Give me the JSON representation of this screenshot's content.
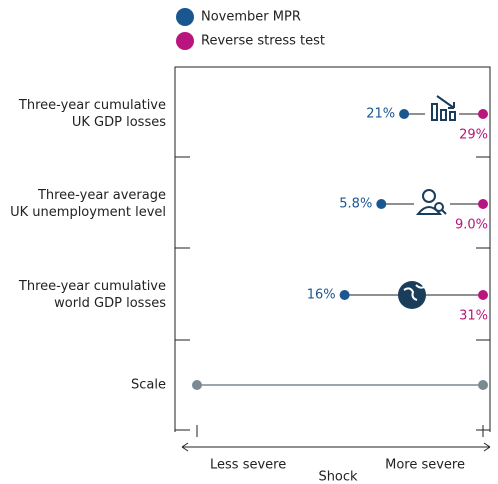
{
  "chart_data": {
    "type": "dumbbell",
    "categories": [
      "Three-year cumulative\nUK GDP losses",
      "Three-year average\nUK unemployment level",
      "Three-year cumulative\nworld GDP losses"
    ],
    "series": [
      {
        "name": "November MPR",
        "color": "#1a5791",
        "values": [
          21,
          5.8,
          16
        ],
        "value_labels": [
          "21%",
          "5.8%",
          "16%"
        ]
      },
      {
        "name": "Reverse stress test",
        "color": "#b8157e",
        "values": [
          29,
          9.0,
          31
        ],
        "value_labels": [
          "29%",
          "9.0%",
          "31%"
        ]
      }
    ],
    "scale_label": "Scale",
    "scale_color": "#7a8a91",
    "xlabel": "Shock",
    "left_label": "Less severe",
    "right_label": "More severe"
  }
}
